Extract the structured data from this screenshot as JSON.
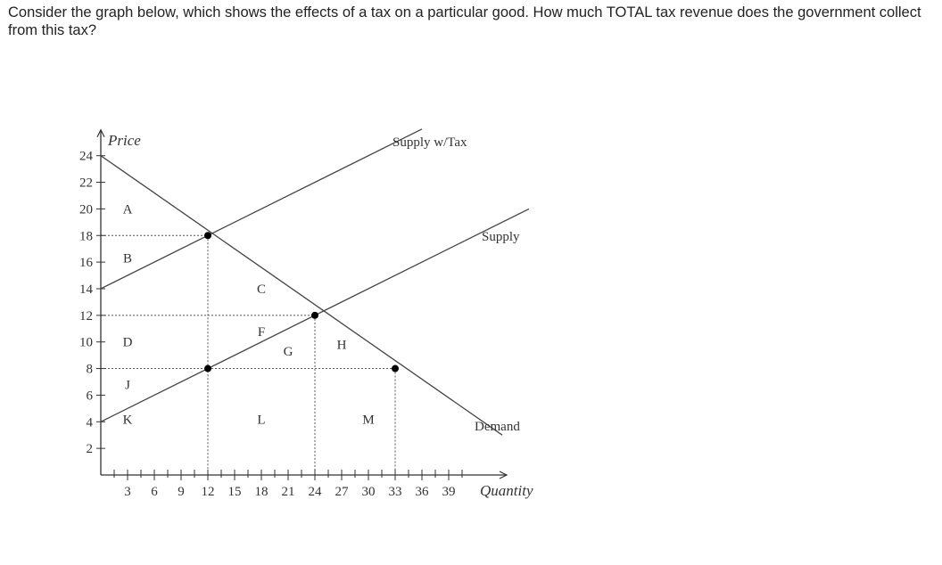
{
  "question": {
    "text": "Consider the graph below, which shows the effects of a tax on a particular good. How much TOTAL tax revenue does the government collect from this tax?"
  },
  "chart_data": {
    "type": "line",
    "title": "",
    "xlabel": "Quantity",
    "ylabel": "Price",
    "xlim": [
      0,
      42
    ],
    "ylim": [
      0,
      25
    ],
    "xticks": [
      3,
      6,
      9,
      12,
      15,
      18,
      21,
      24,
      27,
      30,
      33,
      36,
      39
    ],
    "yticks": [
      2,
      4,
      6,
      8,
      10,
      12,
      14,
      16,
      18,
      20,
      22,
      24
    ],
    "series": [
      {
        "name": "Supply w/Tax",
        "x": [
          0,
          36
        ],
        "y": [
          14,
          26
        ]
      },
      {
        "name": "Supply",
        "x": [
          0,
          48
        ],
        "y": [
          4,
          20
        ]
      },
      {
        "name": "Demand",
        "x": [
          0,
          45
        ],
        "y": [
          24,
          3
        ]
      }
    ],
    "points": [
      {
        "x": 12,
        "y": 18
      },
      {
        "x": 24,
        "y": 12
      },
      {
        "x": 12,
        "y": 8
      },
      {
        "x": 33,
        "y": 8
      }
    ],
    "regions": [
      {
        "label": "A",
        "x": 3,
        "y": 20
      },
      {
        "label": "B",
        "x": 3,
        "y": 16.3
      },
      {
        "label": "C",
        "x": 18,
        "y": 14
      },
      {
        "label": "D",
        "x": 3,
        "y": 10
      },
      {
        "label": "F",
        "x": 18,
        "y": 10.8
      },
      {
        "label": "G",
        "x": 21,
        "y": 9.3
      },
      {
        "label": "H",
        "x": 27,
        "y": 9.8
      },
      {
        "label": "J",
        "x": 3,
        "y": 6.8
      },
      {
        "label": "K",
        "x": 3,
        "y": 4.2
      },
      {
        "label": "L",
        "x": 18,
        "y": 4.2
      },
      {
        "label": "M",
        "x": 30,
        "y": 4.2
      }
    ]
  }
}
